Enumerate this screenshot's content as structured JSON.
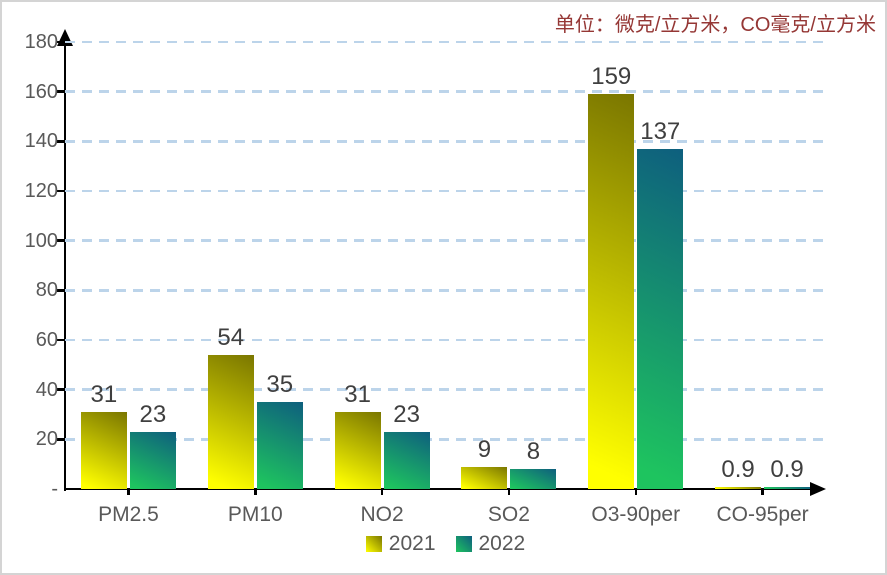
{
  "unit_note": "单位：微克/立方米，CO毫克/立方米",
  "chart_data": {
    "type": "bar",
    "title": "",
    "categories": [
      "PM2.5",
      "PM10",
      "NO2",
      "SO2",
      "O3-90per",
      "CO-95per"
    ],
    "series": [
      {
        "name": "2021",
        "values": [
          31,
          54,
          31,
          9,
          159,
          0.9
        ],
        "color_top": "#7A7600",
        "color_bottom": "#FFFF00"
      },
      {
        "name": "2022",
        "values": [
          23,
          35,
          23,
          8,
          137,
          0.9
        ],
        "color_top": "#0E5F7E",
        "color_bottom": "#1EC45F"
      }
    ],
    "ylim": [
      0,
      180
    ],
    "ytick_step": 20,
    "zero_tick_label": "-",
    "value_labels": true,
    "grid": "horizontal-dashed",
    "legend_position": "bottom"
  },
  "colors": {
    "gridline": "#BCD4EA",
    "axis": "#000000",
    "tick_label": "#595959",
    "value_label": "#3f3f3f",
    "unit_note": "#953735",
    "frame_border": "#d4d4d4"
  }
}
